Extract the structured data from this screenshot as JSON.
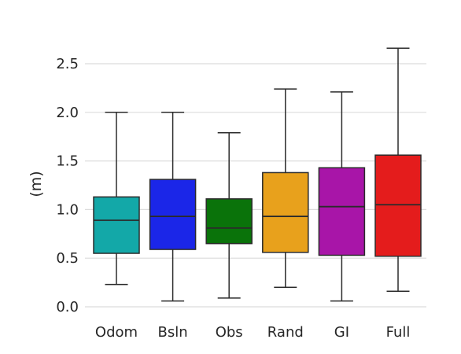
{
  "chart_data": {
    "type": "box",
    "title": "",
    "xlabel": "",
    "ylabel": "(m)",
    "ylim": [
      -0.05,
      2.75
    ],
    "yticks": [
      0.0,
      0.5,
      1.0,
      1.5,
      2.0,
      2.5
    ],
    "ytick_labels": [
      "0.0",
      "0.5",
      "1.0",
      "1.5",
      "2.0",
      "2.5"
    ],
    "grid": "horizontal",
    "categories": [
      "Odom",
      "Bsln",
      "Obs",
      "Rand",
      "GI",
      "Full"
    ],
    "colors": [
      "#13a8a8",
      "#1b26e8",
      "#0a730a",
      "#e8a11c",
      "#a815a8",
      "#e41c1c"
    ],
    "boxes": [
      {
        "name": "Odom",
        "whislo": 0.23,
        "q1": 0.55,
        "med": 0.89,
        "q3": 1.13,
        "whishi": 2.0
      },
      {
        "name": "Bsln",
        "whislo": 0.06,
        "q1": 0.59,
        "med": 0.93,
        "q3": 1.31,
        "whishi": 2.0
      },
      {
        "name": "Obs",
        "whislo": 0.09,
        "q1": 0.65,
        "med": 0.81,
        "q3": 1.11,
        "whishi": 1.79
      },
      {
        "name": "Rand",
        "whislo": 0.2,
        "q1": 0.56,
        "med": 0.93,
        "q3": 1.38,
        "whishi": 2.24
      },
      {
        "name": "GI",
        "whislo": 0.06,
        "q1": 0.53,
        "med": 1.03,
        "q3": 1.43,
        "whishi": 2.21
      },
      {
        "name": "Full",
        "whislo": 0.16,
        "q1": 0.52,
        "med": 1.05,
        "q3": 1.56,
        "whishi": 2.66
      }
    ]
  }
}
